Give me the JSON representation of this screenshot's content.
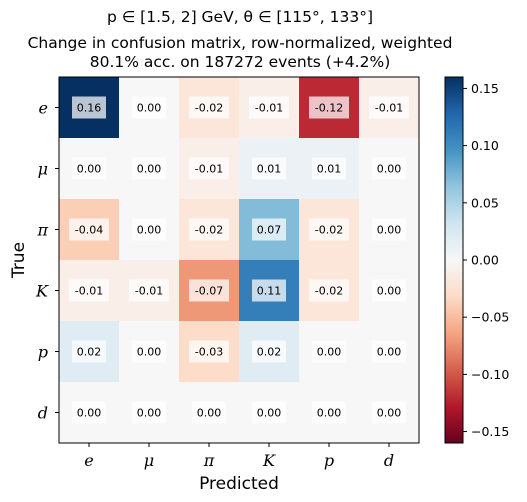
{
  "chart_data": {
    "type": "heatmap",
    "title_line1": "p ∈ [1.5, 2] GeV, θ ∈ [115°, 133°]",
    "title_line2": "Change in confusion matrix, row-normalized, weighted",
    "title_line3": "80.1% acc. on 187272 events (+4.2%)",
    "xlabel": "Predicted",
    "ylabel": "True",
    "x_categories": [
      "e",
      "μ",
      "π",
      "K",
      "p",
      "d"
    ],
    "y_categories": [
      "e",
      "μ",
      "π",
      "K",
      "p",
      "d"
    ],
    "values": [
      [
        0.16,
        0.0,
        -0.02,
        -0.01,
        -0.12,
        -0.01
      ],
      [
        0.0,
        0.0,
        -0.01,
        0.01,
        0.01,
        0.0
      ],
      [
        -0.04,
        0.0,
        -0.02,
        0.07,
        -0.02,
        0.0
      ],
      [
        -0.01,
        -0.01,
        -0.07,
        0.11,
        -0.02,
        0.0
      ],
      [
        0.02,
        0.0,
        -0.03,
        0.02,
        0.0,
        0.0
      ],
      [
        0.0,
        0.0,
        0.0,
        0.0,
        0.0,
        0.0
      ]
    ],
    "colorbar": {
      "range": [
        -0.16,
        0.16
      ],
      "ticks": [
        0.15,
        0.1,
        0.05,
        0.0,
        -0.05,
        -0.1,
        -0.15
      ],
      "tick_labels": [
        "0.15",
        "0.10",
        "0.05",
        "0.00",
        "−0.05",
        "−0.10",
        "−0.15"
      ],
      "colormap": "RdBu"
    }
  }
}
